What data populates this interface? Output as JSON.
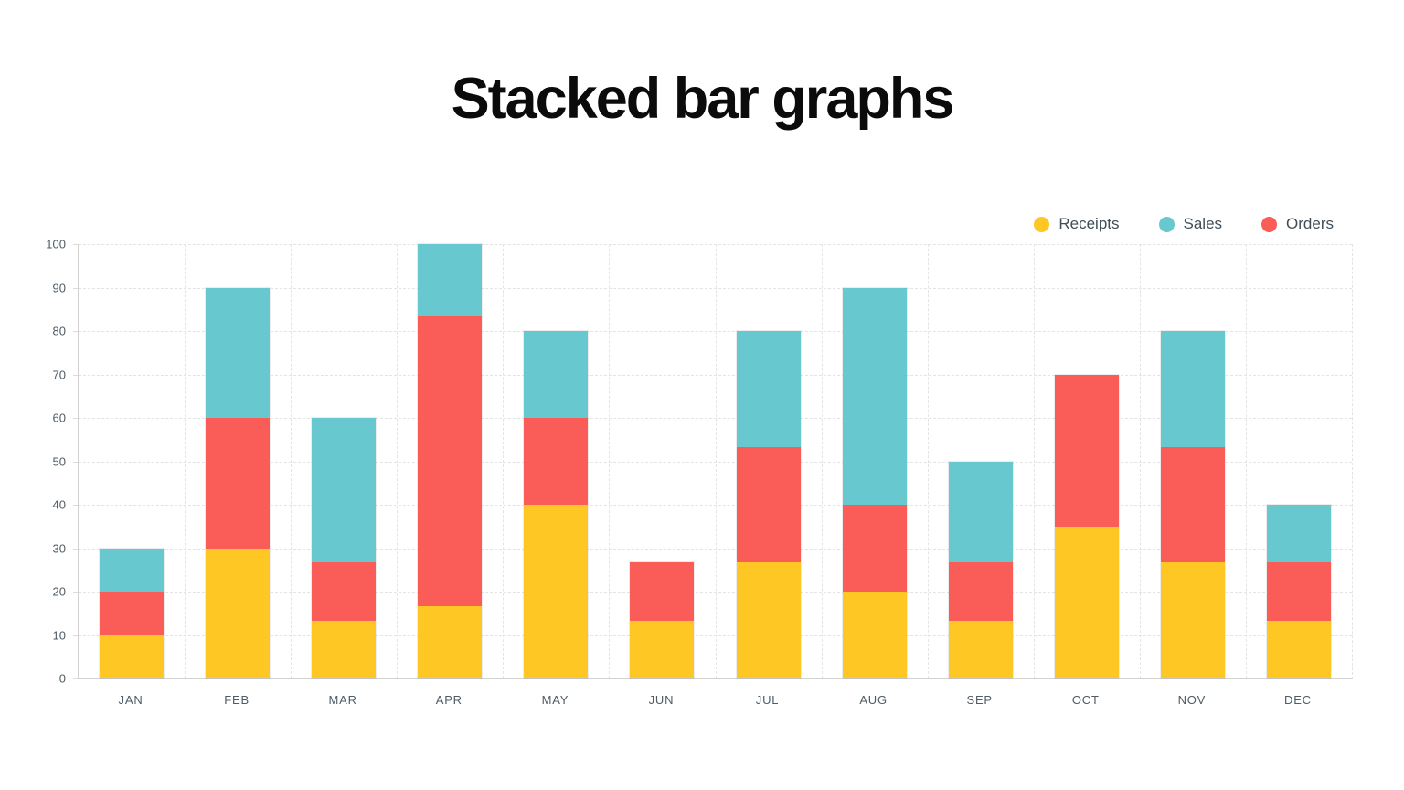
{
  "title": "Stacked bar graphs",
  "legend": {
    "position": "top-right",
    "items": [
      {
        "label": "Receipts",
        "color": "#fec723"
      },
      {
        "label": "Sales",
        "color": "#67c8cf"
      },
      {
        "label": "Orders",
        "color": "#fa5c57"
      }
    ]
  },
  "chart_data": {
    "type": "bar",
    "stacked": true,
    "title": "Stacked bar graphs",
    "xlabel": "",
    "ylabel": "",
    "categories": [
      "JAN",
      "FEB",
      "MAR",
      "APR",
      "MAY",
      "JUN",
      "JUL",
      "AUG",
      "SEP",
      "OCT",
      "NOV",
      "DEC"
    ],
    "series": [
      {
        "name": "Receipts",
        "color": "#fec723",
        "values": [
          10,
          30,
          13.33,
          16.67,
          40,
          13.33,
          26.67,
          20,
          13.33,
          35,
          26.67,
          13.33
        ]
      },
      {
        "name": "Orders",
        "color": "#fa5c57",
        "values": [
          10,
          30,
          13.33,
          66.67,
          20,
          13.33,
          26.67,
          20,
          13.33,
          35,
          26.67,
          13.33
        ]
      },
      {
        "name": "Sales",
        "color": "#67c8cf",
        "values": [
          10,
          30,
          33.33,
          16.67,
          20,
          0,
          26.67,
          50,
          23.33,
          0,
          26.67,
          13.33
        ]
      }
    ],
    "stack_order_bottom_to_top": [
      "Receipts",
      "Orders",
      "Sales"
    ],
    "totals_by_month": [
      30,
      90,
      60,
      100,
      80,
      26.7,
      80,
      90,
      50,
      70,
      80,
      40
    ],
    "ylim": [
      0,
      100
    ],
    "yticks": [
      0,
      10,
      20,
      30,
      40,
      50,
      60,
      70,
      80,
      90,
      100
    ],
    "grid": true,
    "legend_position": "top-right"
  },
  "colors": {
    "receipts": "#fec723",
    "sales": "#67c8cf",
    "orders": "#fa5c57",
    "grid": "#e4e4e4",
    "axis": "#d2d2d2",
    "tick_text": "#4d5c66",
    "legend_text": "#414e57",
    "title_text": "#0b0b0b",
    "background": "#ffffff"
  }
}
